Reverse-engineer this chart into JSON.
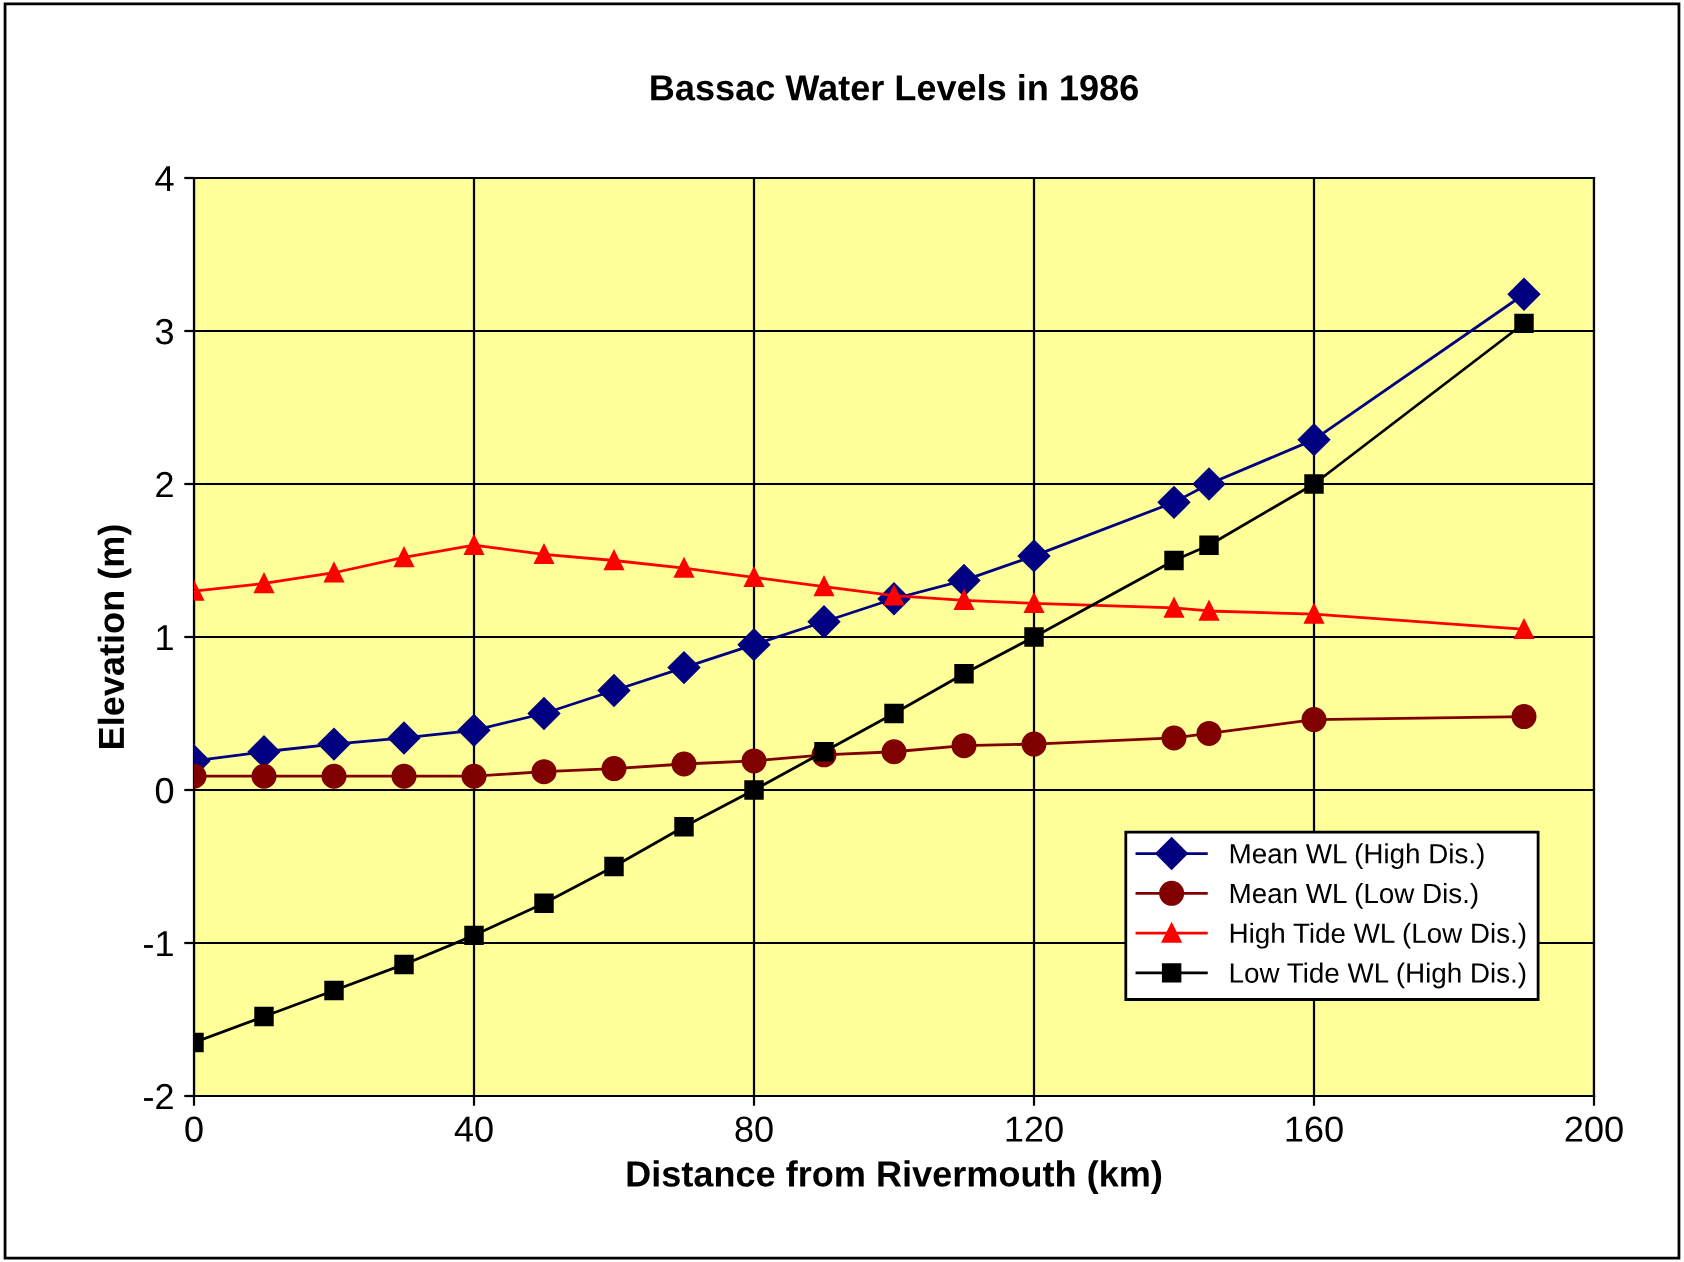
{
  "chart_data": {
    "type": "line",
    "title": "Bassac Water Levels in 1986",
    "xlabel": "Distance from Rivermouth (km)",
    "ylabel": "Elevation (m)",
    "x": [
      0,
      10,
      20,
      30,
      40,
      50,
      60,
      70,
      80,
      90,
      100,
      110,
      120,
      140,
      145,
      160,
      190
    ],
    "series": [
      {
        "name": "Mean WL (High Dis.)",
        "color": "#000080",
        "marker": "diamond",
        "values": [
          0.19,
          0.25,
          0.3,
          0.34,
          0.39,
          0.5,
          0.65,
          0.8,
          0.95,
          1.1,
          1.25,
          1.37,
          1.53,
          1.88,
          2.0,
          2.29,
          3.24
        ]
      },
      {
        "name": "Mean WL (Low Dis.)",
        "color": "#800000",
        "marker": "circle",
        "values": [
          0.09,
          0.09,
          0.09,
          0.09,
          0.09,
          0.12,
          0.14,
          0.17,
          0.19,
          0.23,
          0.25,
          0.29,
          0.3,
          0.34,
          0.37,
          0.46,
          0.48
        ]
      },
      {
        "name": "High Tide WL (Low Dis.)",
        "color": "#ff0000",
        "marker": "triangle",
        "values": [
          1.3,
          1.35,
          1.42,
          1.52,
          1.6,
          1.54,
          1.5,
          1.45,
          1.39,
          1.33,
          1.27,
          1.24,
          1.22,
          1.19,
          1.17,
          1.15,
          1.05
        ]
      },
      {
        "name": "Low Tide WL (High Dis.)",
        "color": "#000000",
        "marker": "square",
        "values": [
          -1.65,
          -1.48,
          -1.31,
          -1.14,
          -0.95,
          -0.74,
          -0.5,
          -0.24,
          0,
          0.25,
          0.5,
          0.76,
          1.0,
          1.5,
          1.6,
          2.0,
          3.05
        ]
      }
    ],
    "xlim": [
      0,
      200
    ],
    "xticks": [
      0,
      40,
      80,
      120,
      160,
      200
    ],
    "ylim": [
      -2,
      4
    ],
    "yticks": [
      -2,
      -1,
      0,
      1,
      2,
      3,
      4
    ],
    "grid": true,
    "legend": "bottom right",
    "line_style": "solid"
  }
}
